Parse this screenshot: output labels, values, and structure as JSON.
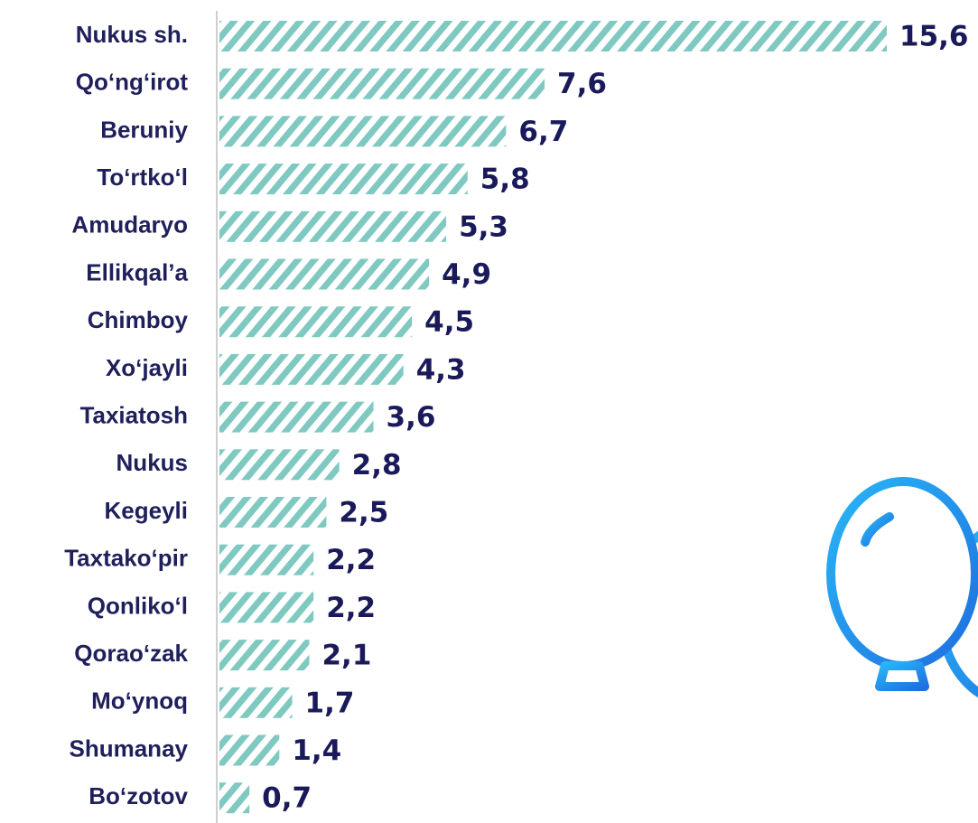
{
  "chart_data": {
    "type": "bar",
    "orientation": "horizontal",
    "categories": [
      "Nukus sh.",
      "Qo‘ng‘irot",
      "Beruniy",
      "To‘rtko‘l",
      "Amudaryo",
      "Ellikqal’a",
      "Chimboy",
      "Xo‘jayli",
      "Taxiatosh",
      "Nukus",
      "Kegeyli",
      "Taxtako‘pir",
      "Qonliko‘l",
      "Qorao‘zak",
      "Mo‘ynoq",
      "Shumanay",
      "Bo‘zotov"
    ],
    "values": [
      15.6,
      7.6,
      6.7,
      5.8,
      5.3,
      4.9,
      4.5,
      4.3,
      3.6,
      2.8,
      2.5,
      2.2,
      2.2,
      2.1,
      1.7,
      1.4,
      0.7
    ],
    "value_labels": [
      "15,6",
      "7,6",
      "6,7",
      "5,8",
      "5,3",
      "4,9",
      "4,5",
      "4,3",
      "3,6",
      "2,8",
      "2,5",
      "2,2",
      "2,2",
      "2,1",
      "1,7",
      "1,4",
      "0,7"
    ],
    "color": "#7fc9c1"
  }
}
